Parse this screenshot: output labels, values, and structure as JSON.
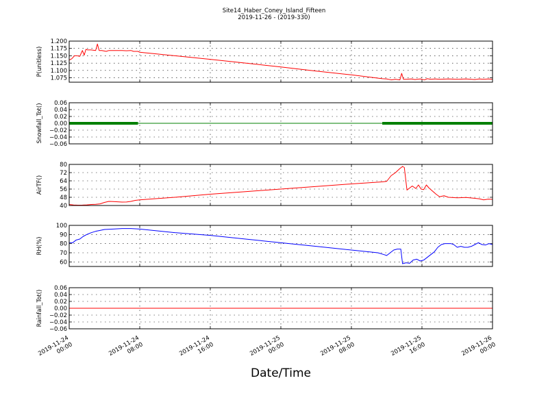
{
  "figure": {
    "title": "Site14_Haber_Coney_Island_Fifteen",
    "subtitle": "2019-11-26 - (2019-330)",
    "xlabel": "Date/Time"
  },
  "chart_data": [
    {
      "type": "line",
      "ylabel": "P(unitless)",
      "color": "#ff0000",
      "ylim": [
        1.06,
        1.2
      ],
      "yticks": [
        1.075,
        1.1,
        1.125,
        1.15,
        1.175,
        1.2
      ],
      "ytick_labels": [
        "1.075",
        "1.100",
        "1.125",
        "1.150",
        "1.175",
        "1.200"
      ],
      "xlim_hours": [
        0,
        48
      ],
      "grid": true,
      "series": [
        {
          "x": [
            0,
            0.3,
            0.6,
            0.9,
            1.2,
            1.5,
            1.7,
            1.9,
            2.1,
            2.5,
            3.0,
            3.2,
            3.4,
            3.7,
            4.2,
            4.5,
            5.0,
            5.5,
            6.0,
            6.5,
            7.0,
            7.3,
            7.8,
            8,
            12,
            16,
            20,
            24,
            28,
            32,
            35.5,
            36,
            36.5,
            37,
            37.5,
            37.7,
            37.9,
            38.2,
            38.8,
            39.2,
            39.8,
            40.3,
            40.6,
            41,
            41.5,
            42,
            43,
            44,
            45,
            46,
            46.5,
            47,
            47.5,
            48
          ],
          "y": [
            1.135,
            1.14,
            1.15,
            1.15,
            1.148,
            1.168,
            1.152,
            1.172,
            1.17,
            1.17,
            1.168,
            1.19,
            1.168,
            1.168,
            1.165,
            1.168,
            1.168,
            1.168,
            1.168,
            1.167,
            1.168,
            1.165,
            1.165,
            1.162,
            1.15,
            1.138,
            1.125,
            1.112,
            1.098,
            1.085,
            1.072,
            1.071,
            1.068,
            1.07,
            1.068,
            1.09,
            1.07,
            1.07,
            1.071,
            1.069,
            1.071,
            1.068,
            1.072,
            1.07,
            1.071,
            1.07,
            1.071,
            1.07,
            1.071,
            1.069,
            1.071,
            1.07,
            1.071,
            1.07
          ]
        }
      ]
    },
    {
      "type": "line",
      "ylabel": "Snowfall_Tot()",
      "color": "#008000",
      "ylim": [
        -0.06,
        0.06
      ],
      "yticks": [
        -0.06,
        -0.04,
        -0.02,
        0.0,
        0.02,
        0.04,
        0.06
      ],
      "ytick_labels": [
        "−0.06",
        "−0.04",
        "−0.02",
        "0.00",
        "0.02",
        "0.04",
        "0.06"
      ],
      "xlim_hours": [
        0,
        48
      ],
      "grid": true,
      "marker_ranges": [
        [
          0,
          7.8
        ],
        [
          35.5,
          48
        ]
      ],
      "series": [
        {
          "x": [
            0,
            48
          ],
          "y": [
            0,
            0
          ]
        }
      ]
    },
    {
      "type": "line",
      "ylabel": "AirTF()",
      "color": "#ff0000",
      "ylim": [
        40,
        80
      ],
      "yticks": [
        40,
        48,
        56,
        64,
        72,
        80
      ],
      "ytick_labels": [
        "40",
        "48",
        "56",
        "64",
        "72",
        "80"
      ],
      "xlim_hours": [
        0,
        48
      ],
      "grid": true,
      "series": [
        {
          "x": [
            0,
            0.5,
            1,
            1.5,
            2,
            2.5,
            3,
            3.5,
            4,
            4.5,
            5,
            5.5,
            6,
            6.5,
            7,
            7.5,
            8,
            12,
            16,
            20,
            24,
            28,
            32,
            35.5,
            36,
            36.5,
            37,
            37.5,
            37.8,
            38,
            38.3,
            38.6,
            38.9,
            39.3,
            39.6,
            39.9,
            40.2,
            40.5,
            40.8,
            41.2,
            41.6,
            42,
            42.5,
            43,
            44,
            45,
            46,
            46.5,
            47,
            47.5,
            48
          ],
          "y": [
            41,
            40.5,
            40.3,
            40.4,
            40.6,
            41,
            41.2,
            41.6,
            43,
            44,
            43.8,
            43.6,
            43.3,
            43.4,
            44,
            45,
            45.5,
            48,
            51,
            53.5,
            56,
            58.5,
            61,
            63,
            63.5,
            69,
            72,
            76,
            78,
            77,
            55,
            57,
            59,
            56.5,
            60,
            56,
            55.5,
            60,
            57,
            54,
            51,
            48.5,
            49.5,
            48,
            47.5,
            47.8,
            47,
            46.5,
            45.5,
            46.2,
            46
          ]
        }
      ]
    },
    {
      "type": "line",
      "ylabel": "RH(%)",
      "color": "#0000ff",
      "ylim": [
        55,
        100
      ],
      "yticks": [
        60,
        70,
        80,
        90,
        100
      ],
      "ytick_labels": [
        "60",
        "70",
        "80",
        "90",
        "100"
      ],
      "xlim_hours": [
        0,
        48
      ],
      "grid": true,
      "series": [
        {
          "x": [
            0,
            0.4,
            0.8,
            1.2,
            1.6,
            2,
            2.5,
            3,
            3.5,
            4,
            5,
            6,
            7,
            8,
            12,
            16,
            20,
            24,
            28,
            32,
            35,
            35.7,
            36,
            36.4,
            36.8,
            37.2,
            37.6,
            37.8,
            38.2,
            38.6,
            39,
            39.4,
            39.8,
            40.2,
            40.6,
            41,
            41.4,
            41.8,
            42.2,
            42.6,
            43,
            43.3,
            43.6,
            44,
            44.4,
            44.8,
            45.2,
            45.6,
            46,
            46.4,
            46.8,
            47.2,
            47.6,
            48
          ],
          "y": [
            81,
            81,
            84,
            85,
            88,
            90,
            92,
            93.5,
            94.5,
            95.5,
            96,
            96.5,
            96.5,
            96,
            92,
            89,
            85,
            81,
            77,
            73,
            70,
            68,
            67,
            70,
            73,
            74,
            74,
            58,
            59,
            58.5,
            62,
            63,
            61,
            62,
            65,
            68,
            71,
            76,
            79,
            80,
            80,
            80,
            79,
            76,
            77,
            76,
            76,
            77,
            79,
            81,
            79,
            78.5,
            80,
            79
          ]
        }
      ]
    },
    {
      "type": "line",
      "ylabel": "Rainfall_Tot()",
      "color": "#ff0000",
      "ylim": [
        -0.06,
        0.06
      ],
      "yticks": [
        -0.06,
        -0.04,
        -0.02,
        0.0,
        0.02,
        0.04,
        0.06
      ],
      "ytick_labels": [
        "−0.06",
        "−0.04",
        "−0.02",
        "0.00",
        "0.02",
        "0.04",
        "0.06"
      ],
      "xlim_hours": [
        0,
        48
      ],
      "grid": true,
      "series": [
        {
          "x": [
            0,
            48
          ],
          "y": [
            0,
            0
          ]
        }
      ]
    }
  ],
  "x_axis": {
    "ticks_hours": [
      0,
      8,
      16,
      24,
      32,
      40,
      48
    ],
    "tick_labels": [
      [
        "2019-11-24",
        "00:00"
      ],
      [
        "2019-11-24",
        "08:00"
      ],
      [
        "2019-11-24",
        "16:00"
      ],
      [
        "2019-11-25",
        "00:00"
      ],
      [
        "2019-11-25",
        "08:00"
      ],
      [
        "2019-11-25",
        "16:00"
      ],
      [
        "2019-11-26",
        "00:00"
      ]
    ]
  }
}
